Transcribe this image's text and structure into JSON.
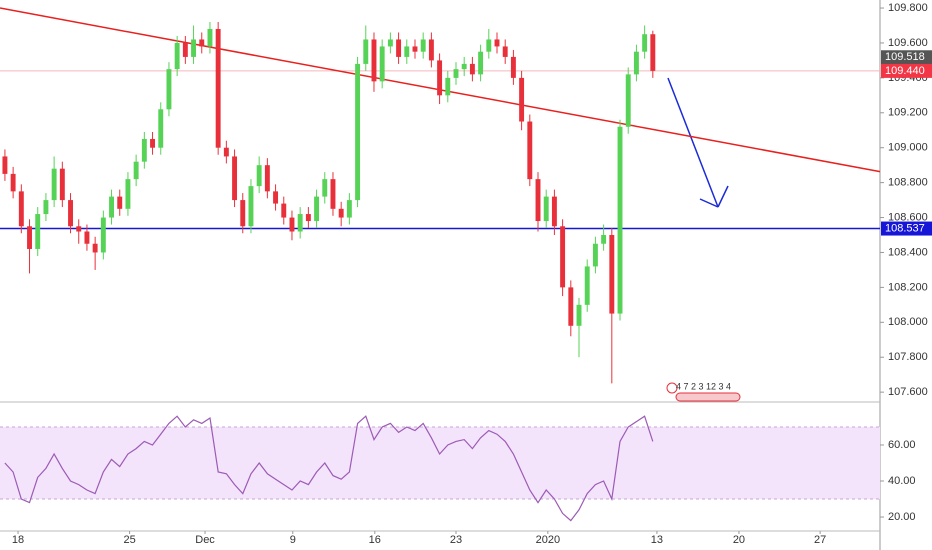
{
  "chart_data": {
    "type": "candlestick",
    "up_color": "#56d356",
    "down_color": "#e8303b",
    "candles": [
      [
        108.95,
        108.99,
        108.81,
        108.85
      ],
      [
        108.85,
        108.89,
        108.71,
        108.75
      ],
      [
        108.75,
        108.79,
        108.51,
        108.55
      ],
      [
        108.55,
        108.59,
        108.28,
        108.42
      ],
      [
        108.42,
        108.66,
        108.38,
        108.62
      ],
      [
        108.62,
        108.74,
        108.58,
        108.7
      ],
      [
        108.7,
        108.95,
        108.66,
        108.88
      ],
      [
        108.88,
        108.92,
        108.66,
        108.7
      ],
      [
        108.7,
        108.74,
        108.51,
        108.55
      ],
      [
        108.55,
        108.59,
        108.45,
        108.52
      ],
      [
        108.52,
        108.56,
        108.41,
        108.45
      ],
      [
        108.45,
        108.49,
        108.3,
        108.4
      ],
      [
        108.4,
        108.64,
        108.36,
        108.6
      ],
      [
        108.6,
        108.76,
        108.56,
        108.72
      ],
      [
        108.72,
        108.76,
        108.61,
        108.65
      ],
      [
        108.65,
        108.86,
        108.61,
        108.82
      ],
      [
        108.82,
        108.96,
        108.78,
        108.92
      ],
      [
        108.92,
        109.09,
        108.88,
        109.05
      ],
      [
        109.05,
        109.09,
        108.96,
        109.0
      ],
      [
        109.0,
        109.26,
        108.96,
        109.22
      ],
      [
        109.22,
        109.49,
        109.18,
        109.45
      ],
      [
        109.45,
        109.64,
        109.41,
        109.6
      ],
      [
        109.6,
        109.64,
        109.48,
        109.52
      ],
      [
        109.52,
        109.7,
        109.48,
        109.62
      ],
      [
        109.62,
        109.66,
        109.54,
        109.58
      ],
      [
        109.58,
        109.72,
        109.54,
        109.68
      ],
      [
        109.68,
        109.72,
        108.96,
        109.0
      ],
      [
        109.0,
        109.04,
        108.91,
        108.95
      ],
      [
        108.95,
        108.99,
        108.66,
        108.7
      ],
      [
        108.7,
        108.74,
        108.51,
        108.55
      ],
      [
        108.55,
        108.82,
        108.51,
        108.78
      ],
      [
        108.78,
        108.95,
        108.74,
        108.9
      ],
      [
        108.9,
        108.94,
        108.71,
        108.75
      ],
      [
        108.75,
        108.79,
        108.64,
        108.68
      ],
      [
        108.68,
        108.72,
        108.56,
        108.6
      ],
      [
        108.6,
        108.64,
        108.47,
        108.52
      ],
      [
        108.52,
        108.66,
        108.48,
        108.62
      ],
      [
        108.62,
        108.66,
        108.54,
        108.58
      ],
      [
        108.58,
        108.76,
        108.54,
        108.72
      ],
      [
        108.72,
        108.86,
        108.68,
        108.82
      ],
      [
        108.82,
        108.86,
        108.61,
        108.65
      ],
      [
        108.65,
        108.69,
        108.55,
        108.6
      ],
      [
        108.6,
        108.74,
        108.56,
        108.7
      ],
      [
        108.7,
        109.52,
        108.66,
        109.48
      ],
      [
        109.48,
        109.7,
        109.44,
        109.62
      ],
      [
        109.62,
        109.66,
        109.32,
        109.38
      ],
      [
        109.38,
        109.62,
        109.34,
        109.58
      ],
      [
        109.58,
        109.66,
        109.54,
        109.62
      ],
      [
        109.62,
        109.66,
        109.48,
        109.52
      ],
      [
        109.52,
        109.62,
        109.48,
        109.58
      ],
      [
        109.58,
        109.62,
        109.51,
        109.55
      ],
      [
        109.55,
        109.66,
        109.51,
        109.62
      ],
      [
        109.62,
        109.66,
        109.46,
        109.5
      ],
      [
        109.5,
        109.54,
        109.25,
        109.3
      ],
      [
        109.3,
        109.44,
        109.26,
        109.4
      ],
      [
        109.4,
        109.49,
        109.36,
        109.45
      ],
      [
        109.45,
        109.52,
        109.41,
        109.48
      ],
      [
        109.48,
        109.52,
        109.38,
        109.42
      ],
      [
        109.42,
        109.59,
        109.38,
        109.55
      ],
      [
        109.55,
        109.68,
        109.51,
        109.62
      ],
      [
        109.62,
        109.66,
        109.54,
        109.58
      ],
      [
        109.58,
        109.62,
        109.48,
        109.52
      ],
      [
        109.52,
        109.56,
        109.36,
        109.4
      ],
      [
        109.4,
        109.44,
        109.1,
        109.15
      ],
      [
        109.15,
        109.19,
        108.78,
        108.82
      ],
      [
        108.82,
        108.86,
        108.52,
        108.58
      ],
      [
        108.58,
        108.76,
        108.54,
        108.72
      ],
      [
        108.72,
        108.76,
        108.5,
        108.55
      ],
      [
        108.55,
        108.59,
        108.15,
        108.2
      ],
      [
        108.2,
        108.24,
        107.92,
        107.98
      ],
      [
        107.98,
        108.14,
        107.8,
        108.1
      ],
      [
        108.1,
        108.36,
        108.06,
        108.32
      ],
      [
        108.32,
        108.49,
        108.28,
        108.45
      ],
      [
        108.45,
        108.56,
        108.41,
        108.5
      ],
      [
        108.5,
        108.54,
        107.65,
        108.05
      ],
      [
        108.05,
        109.16,
        108.01,
        109.12
      ],
      [
        109.12,
        109.46,
        109.08,
        109.42
      ],
      [
        109.42,
        109.59,
        109.38,
        109.55
      ],
      [
        109.55,
        109.7,
        109.51,
        109.65
      ],
      [
        109.65,
        109.67,
        109.4,
        109.44
      ]
    ],
    "xlim": [
      -0.6,
      106.7
    ],
    "xticks": [
      {
        "value": 1.6,
        "label": "18"
      },
      {
        "value": 15.2,
        "label": "25"
      },
      {
        "value": 24.4,
        "label": "Dec"
      },
      {
        "value": 35.1,
        "label": "9"
      },
      {
        "value": 45.1,
        "label": "16"
      },
      {
        "value": 55,
        "label": "23"
      },
      {
        "value": 66.2,
        "label": "2020"
      },
      {
        "value": 79.5,
        "label": "13"
      },
      {
        "value": 89.5,
        "label": "20"
      },
      {
        "value": 99.4,
        "label": "27"
      }
    ],
    "ylim": [
      107.555,
      109.846
    ],
    "yticks": [
      {
        "value": 107.6,
        "label": "107.600"
      },
      {
        "value": 107.8,
        "label": "107.800"
      },
      {
        "value": 108.0,
        "label": "108.000"
      },
      {
        "value": 108.2,
        "label": "108.200"
      },
      {
        "value": 108.4,
        "label": "108.400"
      },
      {
        "value": 108.6,
        "label": "108.600"
      },
      {
        "value": 108.8,
        "label": "108.800"
      },
      {
        "value": 109.0,
        "label": "109.000"
      },
      {
        "value": 109.2,
        "label": "109.200"
      },
      {
        "value": 109.4,
        "label": "109.400"
      },
      {
        "value": 109.6,
        "label": "109.600"
      },
      {
        "value": 109.8,
        "label": "109.800"
      }
    ],
    "trend_line": {
      "color": "#e8201e",
      "start": [
        -0.6,
        109.8
      ],
      "end": [
        106.7,
        108.863
      ]
    },
    "price_tags": [
      {
        "value": 109.518,
        "label": "109.518",
        "color": "#555555"
      },
      {
        "value": 109.44,
        "label": "109.440",
        "color": "#f23645"
      },
      {
        "value": 108.537,
        "label": "108.537",
        "color": "#1616d8"
      }
    ],
    "events": "4 7 2 3 12 3 4",
    "rsi": {
      "color": "#9c5bb5",
      "band": [
        30,
        70
      ],
      "ylim": [
        12.8,
        82.2
      ],
      "yticks": [
        {
          "value": 20,
          "label": "20.00"
        },
        {
          "value": 40,
          "label": "40.00"
        },
        {
          "value": 60,
          "label": "60.00"
        }
      ],
      "values": [
        50,
        45,
        30,
        28,
        42,
        47,
        55,
        47,
        40,
        38,
        35,
        33,
        45,
        52,
        48,
        55,
        58,
        62,
        60,
        66,
        72,
        76,
        70,
        74,
        72,
        75,
        45,
        44,
        38,
        33,
        44,
        50,
        44,
        41,
        38,
        35,
        40,
        38,
        45,
        50,
        43,
        41,
        45,
        72,
        76,
        63,
        70,
        72,
        67,
        70,
        68,
        72,
        64,
        55,
        60,
        62,
        63,
        58,
        64,
        68,
        66,
        62,
        55,
        45,
        35,
        28,
        35,
        30,
        22,
        18,
        24,
        33,
        38,
        40,
        30,
        62,
        70,
        73,
        76,
        62
      ]
    }
  }
}
